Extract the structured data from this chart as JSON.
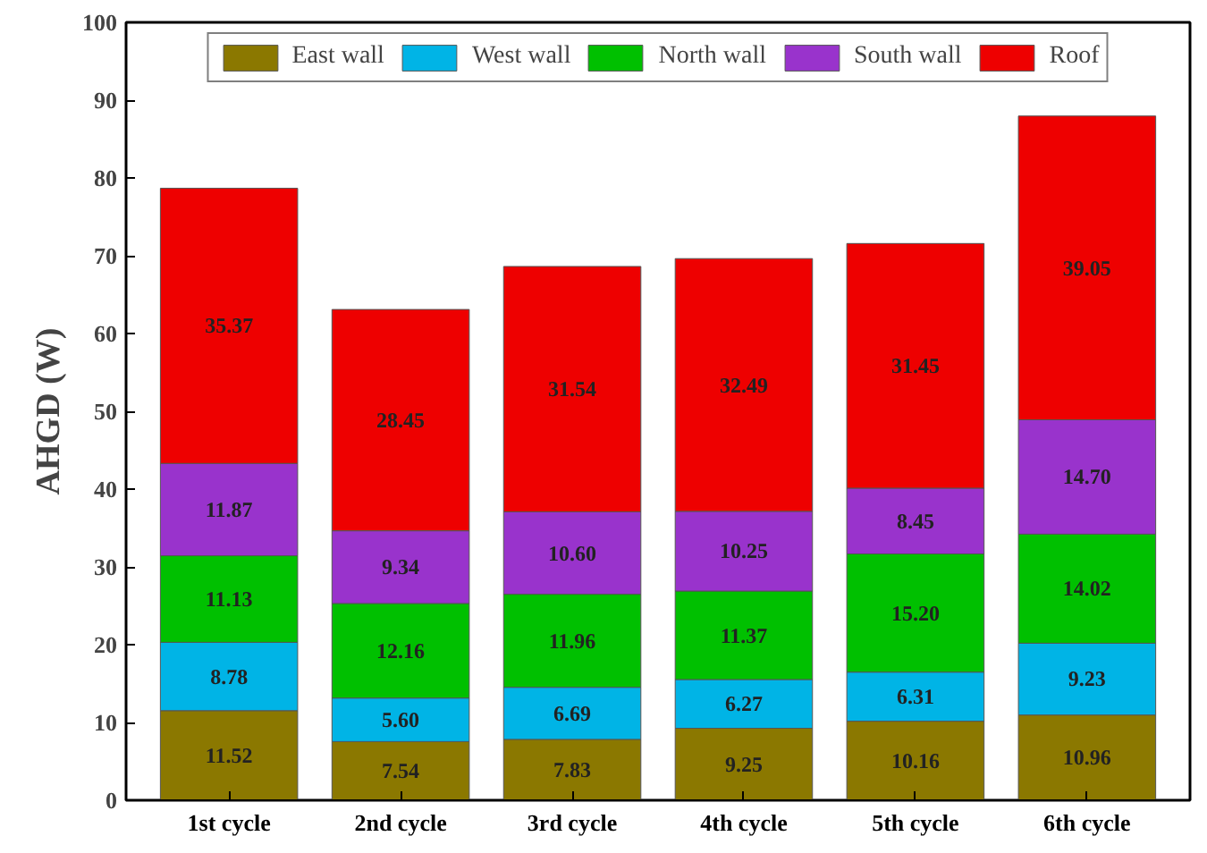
{
  "chart_data": {
    "type": "bar",
    "stacked": true,
    "ylabel": "AHGD (W)",
    "categories": [
      "1st cycle",
      "2nd cycle",
      "3rd cycle",
      "4th cycle",
      "5th cycle",
      "6th cycle"
    ],
    "series": [
      {
        "name": "East wall",
        "color": "#8b7800",
        "values": [
          11.52,
          7.54,
          7.83,
          9.25,
          10.16,
          10.96
        ],
        "value_labels": [
          "11.52",
          "7.54",
          "7.83",
          "9.25",
          "10.16",
          "10.96"
        ]
      },
      {
        "name": "West wall",
        "color": "#00b4e6",
        "values": [
          8.78,
          5.6,
          6.69,
          6.27,
          6.31,
          9.23
        ],
        "value_labels": [
          "8.78",
          "5.60",
          "6.69",
          "6.27",
          "6.31",
          "9.23"
        ]
      },
      {
        "name": "North wall",
        "color": "#00c000",
        "values": [
          11.13,
          12.16,
          11.96,
          11.37,
          15.2,
          14.02
        ],
        "value_labels": [
          "11.13",
          "12.16",
          "11.96",
          "11.37",
          "15.20",
          "14.02"
        ]
      },
      {
        "name": "South wall",
        "color": "#9933cc",
        "values": [
          11.87,
          9.34,
          10.6,
          10.25,
          8.45,
          14.7
        ],
        "value_labels": [
          "11.87",
          "9.34",
          "10.60",
          "10.25",
          "8.45",
          "14.70"
        ]
      },
      {
        "name": "Roof",
        "color": "#ee0000",
        "values": [
          35.37,
          28.45,
          31.54,
          32.49,
          31.45,
          39.05
        ],
        "value_labels": [
          "35.37",
          "28.45",
          "31.54",
          "32.49",
          "31.45",
          "39.05"
        ]
      }
    ],
    "ylim": [
      0,
      100
    ],
    "yticks": [
      0,
      10,
      20,
      30,
      40,
      50,
      60,
      70,
      80,
      90,
      100
    ],
    "grid": false,
    "legend": "top"
  }
}
